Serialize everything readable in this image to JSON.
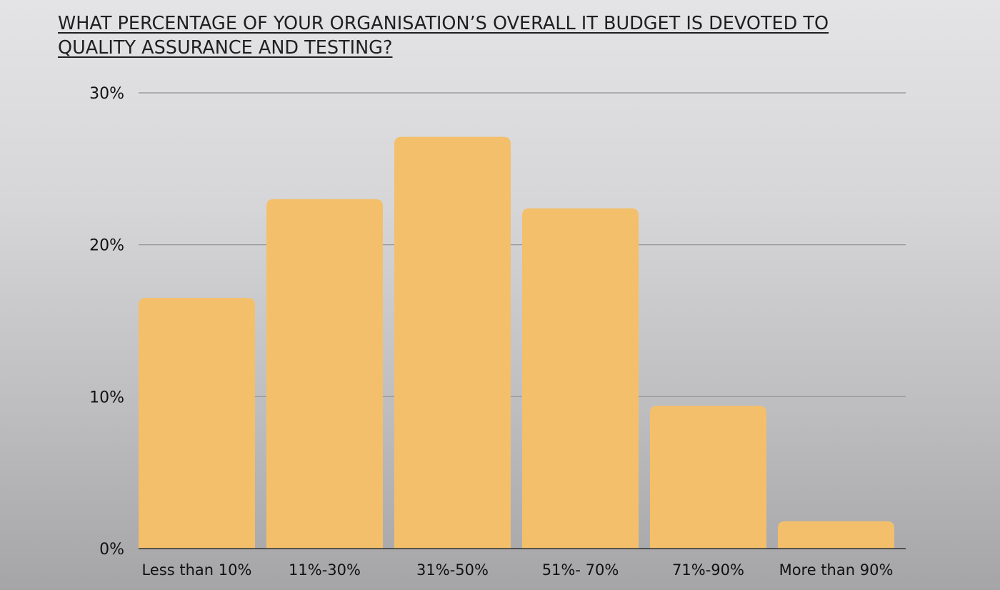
{
  "title_line1": "WHAT PERCENTAGE OF YOUR ORGANISATION’S OVERALL IT BUDGET IS DEVOTED TO",
  "title_line2": "QUALITY ASSURANCE AND TESTING?",
  "colors": {
    "bar": "#f4bf6a",
    "grid": "#8f8f92",
    "text": "#111111"
  },
  "chart_data": {
    "type": "bar",
    "title": "WHAT PERCENTAGE OF YOUR ORGANISATION’S OVERALL IT BUDGET IS DEVOTED TO QUALITY ASSURANCE AND TESTING?",
    "categories": [
      "Less than 10%",
      "11%-30%",
      "31%-50%",
      "51%- 70%",
      "71%-90%",
      "More than 90%"
    ],
    "values": [
      16.5,
      23.0,
      27.1,
      22.4,
      9.4,
      1.8
    ],
    "ylim": [
      0,
      30
    ],
    "yticks": [
      "0%",
      "10%",
      "20%",
      "30%"
    ],
    "ytick_values": [
      0,
      10,
      20,
      30
    ],
    "xlabel": "",
    "ylabel": "",
    "grid": true,
    "legend": "none"
  }
}
